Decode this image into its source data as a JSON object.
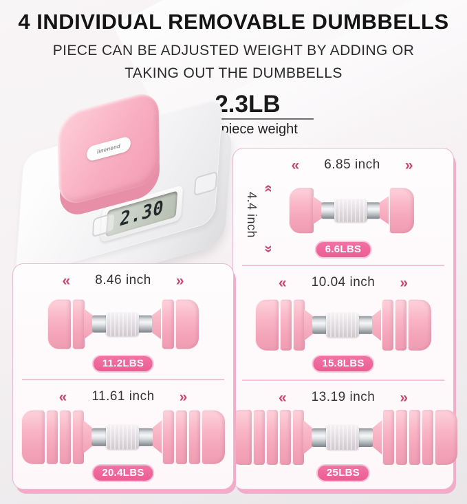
{
  "header": {
    "title": "4 INDIVIDUAL REMOVABLE DUMBBELLS",
    "subtitle_line1": "PIECE CAN BE ADJUSTED WEIGHT BY ADDING OR",
    "subtitle_line2": "TAKING OUT THE DUMBBELLS"
  },
  "weight_callout": {
    "value": "2.3LB",
    "caption": "per piece weight"
  },
  "scale": {
    "brand": "linenend",
    "display_value": "2.30"
  },
  "icons": {
    "chevrons_left": "«",
    "chevrons_right": "»",
    "chevrons_up": "«",
    "chevrons_down": "»"
  },
  "panels": [
    {
      "length_label": "6.85 inch",
      "height_label": "4.4 inch",
      "weight_label": "6.6LBS",
      "plates_per_side": 1
    },
    {
      "length_label": "8.46 inch",
      "weight_label": "11.2LBS",
      "plates_per_side": 2
    },
    {
      "length_label": "10.04 inch",
      "weight_label": "15.8LBS",
      "plates_per_side": 3
    },
    {
      "length_label": "11.61 inch",
      "weight_label": "20.4LBS",
      "plates_per_side": 4
    },
    {
      "length_label": "13.19 inch",
      "weight_label": "25LBS",
      "plates_per_side": 5
    }
  ],
  "colors": {
    "badge_pink": "#ec5c93",
    "arrow_pink": "#c8466f",
    "plate_pink": "#f8b0c2",
    "card_border_pink": "#ecb9ce",
    "card_shadow_pink": "#f2abc8",
    "text_dark": "#1a1a1a"
  }
}
